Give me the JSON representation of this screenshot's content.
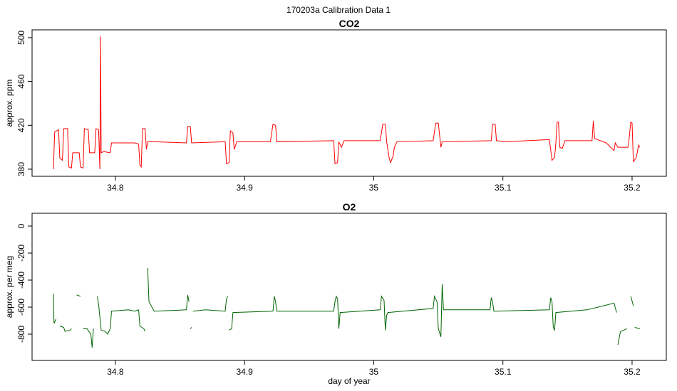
{
  "title": "170203a   Calibration Data 1",
  "chart_data": [
    {
      "type": "line",
      "title": "CO2",
      "y_label": "approx. ppm",
      "color": "#ff0000",
      "xlim": [
        34.7355,
        35.2265
      ],
      "xticks": [
        34.8,
        34.9,
        35.0,
        35.1,
        35.2
      ],
      "ylim": [
        373.5,
        507.1
      ],
      "yticks": [
        380,
        420,
        460,
        500
      ],
      "x": [
        34.752,
        34.753,
        34.756,
        34.757,
        34.759,
        34.76,
        34.763,
        34.764,
        34.766,
        34.767,
        34.772,
        34.773,
        34.775,
        34.776,
        34.779,
        34.78,
        34.784,
        34.785,
        34.787,
        34.788,
        34.7885,
        34.789,
        34.791,
        34.796,
        34.797,
        34.815,
        34.818,
        34.819,
        34.82,
        34.821,
        34.823,
        34.824,
        34.825,
        34.83,
        34.855,
        34.856,
        34.858,
        34.859,
        34.885,
        34.886,
        34.888,
        34.889,
        34.891,
        34.892,
        34.894,
        34.92,
        34.922,
        34.924,
        34.925,
        34.969,
        34.97,
        34.972,
        34.973,
        34.975,
        34.977,
        35.005,
        35.007,
        35.009,
        35.01,
        35.012,
        35.013,
        35.015,
        35.016,
        35.018,
        35.046,
        35.048,
        35.05,
        35.052,
        35.053,
        35.091,
        35.092,
        35.094,
        35.095,
        35.102,
        35.136,
        35.138,
        35.14,
        35.141,
        35.142,
        35.143,
        35.144,
        35.146,
        35.148,
        35.169,
        35.17,
        35.171,
        35.18,
        35.186,
        35.187,
        35.189,
        35.197,
        35.199,
        35.2,
        35.201,
        35.203,
        35.204,
        35.205,
        35.206
      ],
      "values": [
        380,
        414,
        416,
        390,
        388,
        417,
        417,
        382,
        381,
        395,
        395,
        382,
        381,
        417,
        416,
        395,
        395,
        417,
        416,
        380,
        501,
        395,
        396,
        395,
        404,
        404,
        403,
        384,
        382,
        417,
        417,
        398,
        405,
        405,
        404,
        419,
        419,
        404,
        405,
        385,
        386,
        415,
        413,
        398,
        405,
        405,
        421,
        420,
        405,
        406,
        385,
        386,
        405,
        400,
        406,
        406,
        421,
        421,
        405,
        390,
        386,
        392,
        400,
        405,
        406,
        422,
        422,
        400,
        405,
        406,
        421,
        421,
        406,
        405,
        407,
        388,
        391,
        404,
        423,
        423,
        400,
        399,
        406,
        406,
        424,
        408,
        404,
        397,
        404,
        400,
        400,
        423,
        422,
        387,
        390,
        395,
        402,
        400
      ]
    },
    {
      "type": "line",
      "title": "O2",
      "y_label": "approx. per meg",
      "x_label": "day of year",
      "color": "#006400",
      "xlim": [
        34.7355,
        35.2265
      ],
      "xticks": [
        34.8,
        34.9,
        35.0,
        35.1,
        35.2
      ],
      "ylim": [
        -994.7,
        94.7
      ],
      "yticks": [
        0,
        -200,
        -400,
        -600,
        -800
      ],
      "x": [
        34.752,
        34.7525,
        34.754,
        34.755,
        34.757,
        34.76,
        34.761,
        34.765,
        34.766,
        34.768,
        34.77,
        34.773,
        34.774,
        34.775,
        34.778,
        34.781,
        34.782,
        34.783,
        34.785,
        34.786,
        34.787,
        34.789,
        34.792,
        34.794,
        34.796,
        34.797,
        34.81,
        34.815,
        34.818,
        34.819,
        34.822,
        34.823,
        34.824,
        34.825,
        34.826,
        34.83,
        34.855,
        34.856,
        34.857,
        34.8575,
        34.858,
        34.859,
        34.8595,
        34.86,
        34.87,
        34.885,
        34.886,
        34.887,
        34.8875,
        34.888,
        34.89,
        34.891,
        34.922,
        34.923,
        34.924,
        34.925,
        34.969,
        34.97,
        34.971,
        34.972,
        34.973,
        34.974,
        35.005,
        35.006,
        35.008,
        35.009,
        35.01,
        35.011,
        35.046,
        35.047,
        35.049,
        35.05,
        35.052,
        35.053,
        35.054,
        35.09,
        35.091,
        35.092,
        35.093,
        35.136,
        35.137,
        35.138,
        35.139,
        35.14,
        35.141,
        35.165,
        35.178,
        35.186,
        35.188,
        35.1885,
        35.189,
        35.191,
        35.196,
        35.198,
        35.199,
        35.201,
        35.2015,
        35.202,
        35.206
      ],
      "values": [
        -500,
        -720,
        -690,
        null,
        -740,
        -750,
        -780,
        -770,
        -760,
        null,
        -510,
        -520,
        null,
        -760,
        -760,
        -800,
        -900,
        -760,
        null,
        -520,
        -580,
        -770,
        -780,
        -800,
        -760,
        -630,
        -620,
        -630,
        -620,
        -740,
        -760,
        -780,
        null,
        -310,
        -560,
        -630,
        -620,
        -510,
        -560,
        null,
        -760,
        -750,
        null,
        -630,
        -620,
        -630,
        -540,
        -520,
        null,
        -770,
        -760,
        -640,
        -630,
        -520,
        -560,
        -630,
        -630,
        -560,
        -520,
        -540,
        -760,
        -640,
        -620,
        -520,
        -550,
        -770,
        -660,
        -640,
        -610,
        -520,
        -560,
        -760,
        -820,
        -430,
        -620,
        -620,
        -530,
        -560,
        -630,
        -620,
        -530,
        -560,
        -750,
        -770,
        -640,
        -620,
        -590,
        -570,
        -640,
        null,
        -880,
        -780,
        -760,
        null,
        -520,
        -590,
        null,
        -750,
        -760
      ]
    }
  ]
}
